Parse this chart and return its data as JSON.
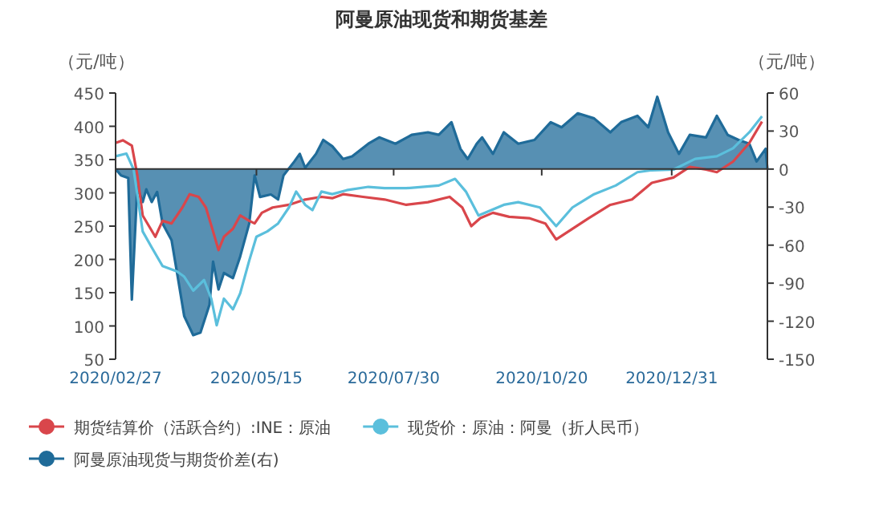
{
  "chart_data": {
    "type": "line",
    "title": "阿曼原油现货和期货基差",
    "ylabel": "（元/吨）",
    "y2label": "（元/吨）",
    "legend": "bottom",
    "xlim": [
      "2020-02-27",
      "2021-02-22"
    ],
    "xticks": [
      {
        "value": "2020-02-27",
        "label": "2020/02/27"
      },
      {
        "value": "2020-05-15",
        "label": "2020/05/15"
      },
      {
        "value": "2020-07-30",
        "label": "2020/07/30"
      },
      {
        "value": "2020-10-20",
        "label": "2020/10/20"
      },
      {
        "value": "2020-12-31",
        "label": "2020/12/31"
      }
    ],
    "ylim": [
      50,
      450
    ],
    "yticks": [
      50,
      100,
      150,
      200,
      250,
      300,
      350,
      400,
      450
    ],
    "y2lim": [
      -150,
      60
    ],
    "y2ticks": [
      -150,
      -120,
      -90,
      -60,
      -30,
      0,
      30,
      60
    ],
    "series": [
      {
        "name": "阿曼原油现货与期货价差(右)",
        "type": "area",
        "axis": "y2",
        "color": "#1f6b99",
        "x": [
          "2020-02-27",
          "2020-03-01",
          "2020-03-05",
          "2020-03-07",
          "2020-03-10",
          "2020-03-13",
          "2020-03-15",
          "2020-03-18",
          "2020-03-21",
          "2020-03-24",
          "2020-03-29",
          "2020-04-02",
          "2020-04-05",
          "2020-04-10",
          "2020-04-14",
          "2020-04-19",
          "2020-04-21",
          "2020-04-24",
          "2020-04-27",
          "2020-05-02",
          "2020-05-06",
          "2020-05-11",
          "2020-05-14",
          "2020-05-17",
          "2020-05-23",
          "2020-05-27",
          "2020-05-30",
          "2020-06-05",
          "2020-06-08",
          "2020-06-11",
          "2020-06-17",
          "2020-06-21",
          "2020-06-26",
          "2020-07-02",
          "2020-07-07",
          "2020-07-16",
          "2020-07-22",
          "2020-07-31",
          "2020-08-09",
          "2020-08-18",
          "2020-08-24",
          "2020-08-31",
          "2020-09-05",
          "2020-09-09",
          "2020-09-14",
          "2020-09-17",
          "2020-09-23",
          "2020-09-29",
          "2020-10-07",
          "2020-10-16",
          "2020-10-25",
          "2020-10-31",
          "2020-11-09",
          "2020-11-18",
          "2020-11-27",
          "2020-12-03",
          "2020-12-12",
          "2020-12-18",
          "2020-12-23",
          "2020-12-29",
          "2021-01-04",
          "2021-01-10",
          "2021-01-19",
          "2021-01-25",
          "2021-01-31",
          "2021-02-06",
          "2021-02-12",
          "2021-02-16",
          "2021-02-21",
          "2021-02-22"
        ],
        "values": [
          0,
          -5,
          -7,
          -103,
          -14,
          -26,
          -16,
          -26,
          -18,
          -43,
          -56,
          -90,
          -116,
          -131,
          -129,
          -107,
          -73,
          -95,
          -82,
          -86,
          -69,
          -43,
          -5,
          -22,
          -20,
          -24,
          -5,
          6,
          12,
          1,
          12,
          23,
          18,
          8,
          10,
          20,
          25,
          20,
          27,
          29,
          27,
          37,
          16,
          8,
          20,
          25,
          12,
          29,
          20,
          23,
          37,
          33,
          44,
          40,
          29,
          37,
          42,
          33,
          57,
          29,
          12,
          27,
          25,
          42,
          27,
          23,
          20,
          6,
          16,
          0
        ]
      },
      {
        "name": "期货结算价（活跃合约）:INE：原油",
        "color": "#d9464b",
        "x": [
          "2020-02-27",
          "2020-03-02",
          "2020-03-07",
          "2020-03-10",
          "2020-03-13",
          "2020-03-20",
          "2020-03-24",
          "2020-03-29",
          "2020-04-04",
          "2020-04-08",
          "2020-04-13",
          "2020-04-17",
          "2020-04-21",
          "2020-04-24",
          "2020-04-27",
          "2020-05-02",
          "2020-05-06",
          "2020-05-11",
          "2020-05-14",
          "2020-05-18",
          "2020-05-24",
          "2020-06-02",
          "2020-06-11",
          "2020-06-20",
          "2020-06-26",
          "2020-07-02",
          "2020-07-13",
          "2020-07-25",
          "2020-08-06",
          "2020-08-18",
          "2020-08-30",
          "2020-09-06",
          "2020-09-11",
          "2020-09-16",
          "2020-09-23",
          "2020-10-02",
          "2020-10-13",
          "2020-10-22",
          "2020-10-28",
          "2020-11-06",
          "2020-11-15",
          "2020-11-27",
          "2020-12-09",
          "2020-12-20",
          "2021-01-01",
          "2021-01-10",
          "2021-01-19",
          "2021-01-25",
          "2021-02-03",
          "2021-02-12",
          "2021-02-19"
        ],
        "values": [
          375,
          379,
          371,
          327,
          266,
          234,
          258,
          254,
          278,
          298,
          294,
          278,
          242,
          214,
          234,
          246,
          266,
          258,
          254,
          270,
          278,
          282,
          290,
          294,
          292,
          298,
          294,
          290,
          282,
          286,
          294,
          278,
          250,
          262,
          270,
          264,
          262,
          254,
          230,
          246,
          262,
          282,
          290,
          315,
          323,
          339,
          335,
          331,
          347,
          375,
          407
        ]
      },
      {
        "name": "现货价：原油：阿曼（折人民币）",
        "color": "#5bbfdc",
        "x": [
          "2020-02-27",
          "2020-03-04",
          "2020-03-08",
          "2020-03-13",
          "2020-03-18",
          "2020-03-24",
          "2020-04-01",
          "2020-04-05",
          "2020-04-10",
          "2020-04-16",
          "2020-04-20",
          "2020-04-23",
          "2020-04-27",
          "2020-05-02",
          "2020-05-06",
          "2020-05-11",
          "2020-05-15",
          "2020-05-21",
          "2020-05-27",
          "2020-06-02",
          "2020-06-06",
          "2020-06-11",
          "2020-06-15",
          "2020-06-20",
          "2020-06-26",
          "2020-07-04",
          "2020-07-16",
          "2020-07-25",
          "2020-08-06",
          "2020-08-24",
          "2020-09-02",
          "2020-09-08",
          "2020-09-15",
          "2020-09-29",
          "2020-10-07",
          "2020-10-19",
          "2020-10-28",
          "2020-11-06",
          "2020-11-18",
          "2020-11-30",
          "2020-12-12",
          "2020-12-20",
          "2021-01-01",
          "2021-01-13",
          "2021-01-25",
          "2021-02-03",
          "2021-02-12",
          "2021-02-19"
        ],
        "values": [
          355,
          359,
          335,
          242,
          218,
          190,
          182,
          174,
          153,
          169,
          141,
          101,
          141,
          125,
          149,
          198,
          234,
          242,
          254,
          278,
          302,
          282,
          274,
          302,
          298,
          304,
          309,
          307,
          307,
          311,
          321,
          302,
          266,
          282,
          286,
          278,
          250,
          278,
          298,
          311,
          331,
          334,
          335,
          351,
          355,
          367,
          391,
          415
        ]
      }
    ]
  }
}
